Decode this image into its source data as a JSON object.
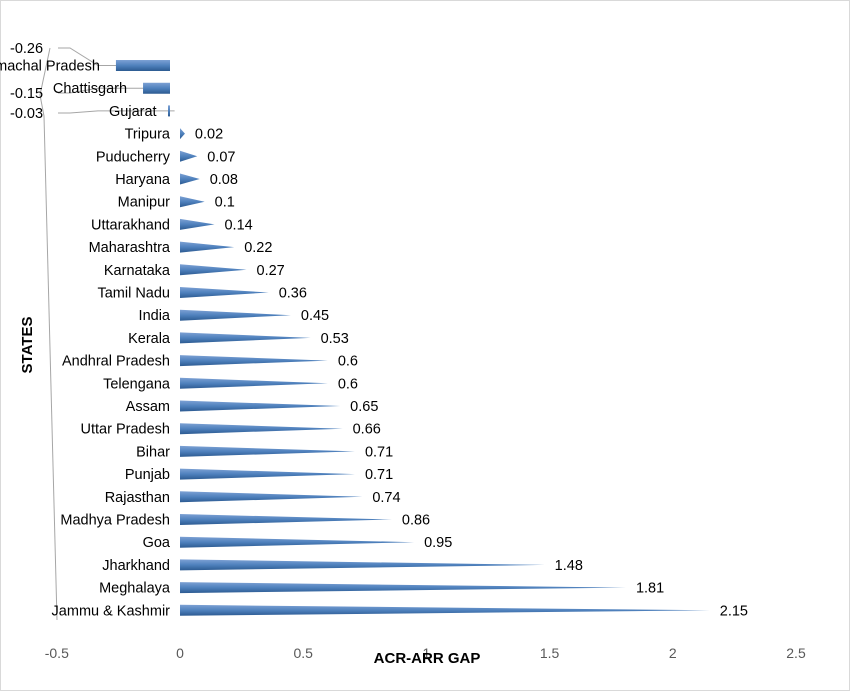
{
  "chart_data": {
    "type": "bar",
    "orientation": "horizontal",
    "xlabel": "ACR-ARR GAP",
    "ylabel": "STATES",
    "xlim": [
      -0.5,
      2.5
    ],
    "xticks": [
      "-0.5",
      "0",
      "0.5",
      "1",
      "1.5",
      "2",
      "2.5"
    ],
    "grid": false,
    "bar_color": "#4f81bd",
    "categories": [
      "Himachal Pradesh",
      "Chattisgarh",
      "Gujarat",
      "Tripura",
      "Puducherry",
      "Haryana",
      "Manipur",
      "Uttarakhand",
      "Maharashtra",
      "Karnataka",
      "Tamil Nadu",
      "India",
      "Kerala",
      "Andhral Pradesh",
      "Telengana",
      "Assam",
      "Uttar Pradesh",
      "Bihar",
      "Punjab",
      "Rajasthan",
      "Madhya Pradesh",
      "Goa",
      "Jharkhand",
      "Meghalaya",
      "Jammu & Kashmir"
    ],
    "values": [
      -0.26,
      -0.15,
      -0.03,
      0.02,
      0.07,
      0.08,
      0.1,
      0.14,
      0.22,
      0.27,
      0.36,
      0.45,
      0.53,
      0.6,
      0.6,
      0.65,
      0.66,
      0.71,
      0.71,
      0.74,
      0.86,
      0.95,
      1.48,
      1.81,
      2.15
    ],
    "data_labels": [
      "-0.26",
      "-0.15",
      "-0.03",
      "0.02",
      "0.07",
      "0.08",
      "0.1",
      "0.14",
      "0.22",
      "0.27",
      "0.36",
      "0.45",
      "0.53",
      "0.6",
      "0.6",
      "0.65",
      "0.66",
      "0.71",
      "0.71",
      "0.74",
      "0.86",
      "0.95",
      "1.48",
      "1.81",
      "2.15"
    ]
  }
}
